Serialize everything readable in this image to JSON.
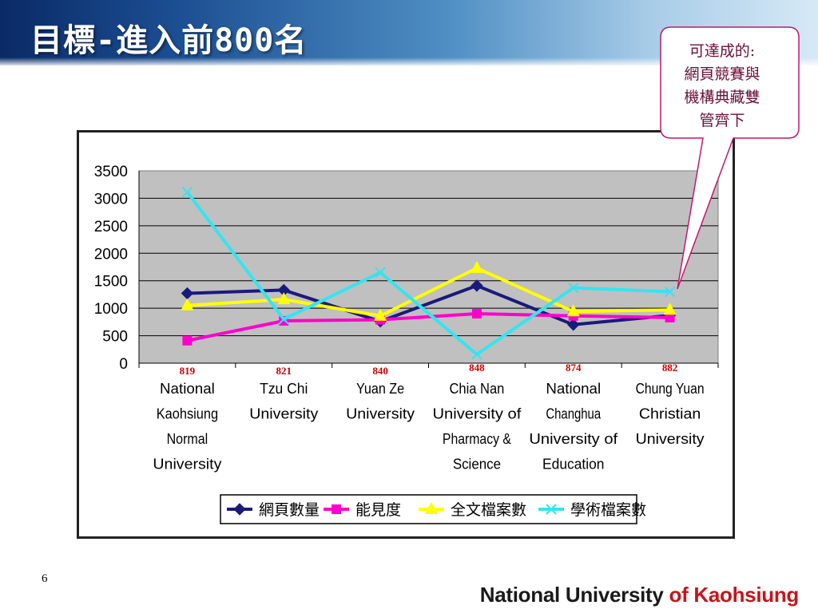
{
  "slide": {
    "title": "目標-進入前800名",
    "page_number": "6",
    "footer_part1": "National University ",
    "footer_part2": "of Kaohsiung"
  },
  "callout": {
    "lines": [
      "可達成的:",
      "網頁競賽與",
      "機構典藏雙",
      "管齊下"
    ],
    "border_color": "#c0186e"
  },
  "chart_data": {
    "type": "line",
    "categories": [
      [
        "National",
        "Kaohsiung",
        "Normal",
        "University"
      ],
      [
        "Tzu Chi",
        "University"
      ],
      [
        "Yuan Ze",
        "University"
      ],
      [
        "Chia Nan",
        "University of",
        "Pharmacy &",
        "Science"
      ],
      [
        "National",
        "Changhua",
        "University of",
        "Education"
      ],
      [
        "Chung Yuan",
        "Christian",
        "University"
      ]
    ],
    "rank_labels": [
      "819",
      "821",
      "840",
      "848",
      "874",
      "882"
    ],
    "rank_label_color": "#cc0000",
    "ylim": [
      0,
      3500
    ],
    "yticks": [
      0,
      500,
      1000,
      1500,
      2000,
      2500,
      3000,
      3500
    ],
    "grid": true,
    "plot_background": "#c0c0c0",
    "legend_position": "bottom",
    "series": [
      {
        "name": "網頁數量",
        "color": "#1a1a7a",
        "marker": "diamond",
        "values": [
          1270,
          1330,
          760,
          1410,
          700,
          870
        ]
      },
      {
        "name": "能見度",
        "color": "#ff00cc",
        "marker": "square",
        "values": [
          410,
          770,
          790,
          900,
          860,
          830
        ]
      },
      {
        "name": "全文檔案數",
        "color": "#ffff00",
        "marker": "triangle",
        "values": [
          1050,
          1160,
          860,
          1730,
          940,
          970
        ]
      },
      {
        "name": "學術檔案數",
        "color": "#33e5f0",
        "marker": "x",
        "values": [
          3110,
          800,
          1650,
          160,
          1370,
          1300
        ]
      }
    ]
  }
}
